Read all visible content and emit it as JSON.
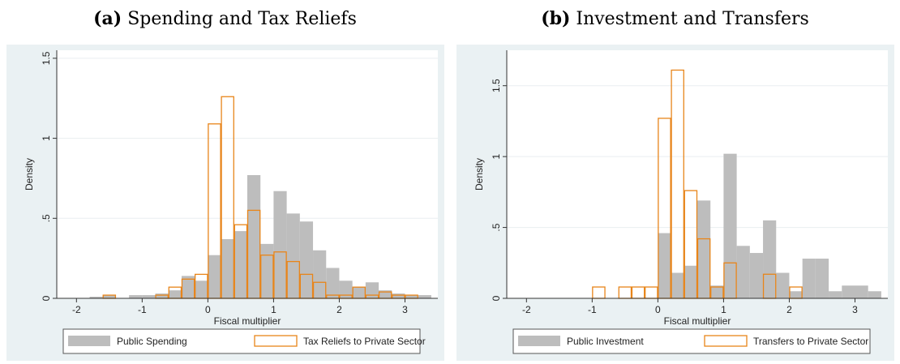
{
  "chart_data": [
    {
      "type": "bar",
      "panel_tag": "(a)",
      "title": "Spending and Tax Reliefs",
      "xlabel": "Fiscal multiplier",
      "ylabel": "Density",
      "xlim": [
        -2.3,
        3.5
      ],
      "ylim": [
        0,
        1.55
      ],
      "xticks": [
        -2,
        -1,
        0,
        1,
        2,
        3
      ],
      "yticks": [
        0,
        0.5,
        1,
        1.5
      ],
      "ytick_labels": [
        "0",
        ".5",
        "1",
        "1.5"
      ],
      "grid": true,
      "legend_position": "bottom",
      "series": [
        {
          "name": "Public Spending",
          "style": "filled",
          "color": "#bdbdbd",
          "bin_width": 0.2,
          "bins": [
            {
              "x0": -1.8,
              "v": 0.01
            },
            {
              "x0": -1.6,
              "v": 0.02
            },
            {
              "x0": -1.2,
              "v": 0.02
            },
            {
              "x0": -1.0,
              "v": 0.02
            },
            {
              "x0": -0.8,
              "v": 0.03
            },
            {
              "x0": -0.6,
              "v": 0.05
            },
            {
              "x0": -0.4,
              "v": 0.14
            },
            {
              "x0": -0.2,
              "v": 0.11
            },
            {
              "x0": 0.0,
              "v": 0.27
            },
            {
              "x0": 0.2,
              "v": 0.37
            },
            {
              "x0": 0.4,
              "v": 0.42
            },
            {
              "x0": 0.6,
              "v": 0.77
            },
            {
              "x0": 0.8,
              "v": 0.34
            },
            {
              "x0": 1.0,
              "v": 0.67
            },
            {
              "x0": 1.2,
              "v": 0.53
            },
            {
              "x0": 1.4,
              "v": 0.48
            },
            {
              "x0": 1.6,
              "v": 0.3
            },
            {
              "x0": 1.8,
              "v": 0.19
            },
            {
              "x0": 2.0,
              "v": 0.11
            },
            {
              "x0": 2.2,
              "v": 0.07
            },
            {
              "x0": 2.4,
              "v": 0.1
            },
            {
              "x0": 2.6,
              "v": 0.05
            },
            {
              "x0": 2.8,
              "v": 0.03
            },
            {
              "x0": 3.0,
              "v": 0.02
            },
            {
              "x0": 3.2,
              "v": 0.02
            }
          ]
        },
        {
          "name": "Tax Reliefs to Private Sector",
          "style": "outline",
          "color": "#e8851a",
          "bin_width": 0.2,
          "bins": [
            {
              "x0": -1.6,
              "v": 0.02
            },
            {
              "x0": -0.8,
              "v": 0.02
            },
            {
              "x0": -0.6,
              "v": 0.07
            },
            {
              "x0": -0.4,
              "v": 0.12
            },
            {
              "x0": -0.2,
              "v": 0.15
            },
            {
              "x0": 0.0,
              "v": 1.09
            },
            {
              "x0": 0.2,
              "v": 1.26
            },
            {
              "x0": 0.4,
              "v": 0.46
            },
            {
              "x0": 0.6,
              "v": 0.55
            },
            {
              "x0": 0.8,
              "v": 0.27
            },
            {
              "x0": 1.0,
              "v": 0.29
            },
            {
              "x0": 1.2,
              "v": 0.23
            },
            {
              "x0": 1.4,
              "v": 0.15
            },
            {
              "x0": 1.6,
              "v": 0.1
            },
            {
              "x0": 1.8,
              "v": 0.02
            },
            {
              "x0": 2.0,
              "v": 0.02
            },
            {
              "x0": 2.2,
              "v": 0.07
            },
            {
              "x0": 2.4,
              "v": 0.02
            },
            {
              "x0": 2.6,
              "v": 0.04
            },
            {
              "x0": 2.8,
              "v": 0.02
            },
            {
              "x0": 3.0,
              "v": 0.02
            }
          ]
        }
      ]
    },
    {
      "type": "bar",
      "panel_tag": "(b)",
      "title": "Investment and Transfers",
      "xlabel": "Fiscal multiplier",
      "ylabel": "Density",
      "xlim": [
        -2.3,
        3.5
      ],
      "ylim": [
        0,
        1.75
      ],
      "xticks": [
        -2,
        -1,
        0,
        1,
        2,
        3
      ],
      "yticks": [
        0,
        0.5,
        1,
        1.5
      ],
      "ytick_labels": [
        "0",
        ".5",
        "1",
        "1.5"
      ],
      "grid": true,
      "legend_position": "bottom",
      "series": [
        {
          "name": "Public Investment",
          "style": "filled",
          "color": "#bdbdbd",
          "bin_width": 0.2,
          "bins": [
            {
              "x0": 0.0,
              "v": 0.46
            },
            {
              "x0": 0.2,
              "v": 0.18
            },
            {
              "x0": 0.4,
              "v": 0.23
            },
            {
              "x0": 0.6,
              "v": 0.69
            },
            {
              "x0": 0.8,
              "v": 0.09
            },
            {
              "x0": 1.0,
              "v": 1.02
            },
            {
              "x0": 1.2,
              "v": 0.37
            },
            {
              "x0": 1.4,
              "v": 0.32
            },
            {
              "x0": 1.6,
              "v": 0.55
            },
            {
              "x0": 1.8,
              "v": 0.18
            },
            {
              "x0": 2.0,
              "v": 0.05
            },
            {
              "x0": 2.2,
              "v": 0.28
            },
            {
              "x0": 2.4,
              "v": 0.28
            },
            {
              "x0": 2.6,
              "v": 0.05
            },
            {
              "x0": 2.8,
              "v": 0.09
            },
            {
              "x0": 3.0,
              "v": 0.09
            },
            {
              "x0": 3.2,
              "v": 0.05
            }
          ]
        },
        {
          "name": "Transfers to Private Sector",
          "style": "outline",
          "color": "#e8851a",
          "bin_width": 0.2,
          "bins": [
            {
              "x0": -1.0,
              "v": 0.08
            },
            {
              "x0": -0.6,
              "v": 0.08
            },
            {
              "x0": -0.4,
              "v": 0.08
            },
            {
              "x0": -0.2,
              "v": 0.08
            },
            {
              "x0": 0.0,
              "v": 1.27
            },
            {
              "x0": 0.2,
              "v": 1.61
            },
            {
              "x0": 0.4,
              "v": 0.76
            },
            {
              "x0": 0.6,
              "v": 0.42
            },
            {
              "x0": 0.8,
              "v": 0.08
            },
            {
              "x0": 1.0,
              "v": 0.25
            },
            {
              "x0": 1.6,
              "v": 0.17
            },
            {
              "x0": 2.0,
              "v": 0.08
            }
          ]
        }
      ]
    }
  ],
  "style": {
    "plot_background": "#ffffff",
    "outer_background": "#eaf1f3",
    "grid_color": "#e9eef0",
    "axis_color": "#333333"
  }
}
